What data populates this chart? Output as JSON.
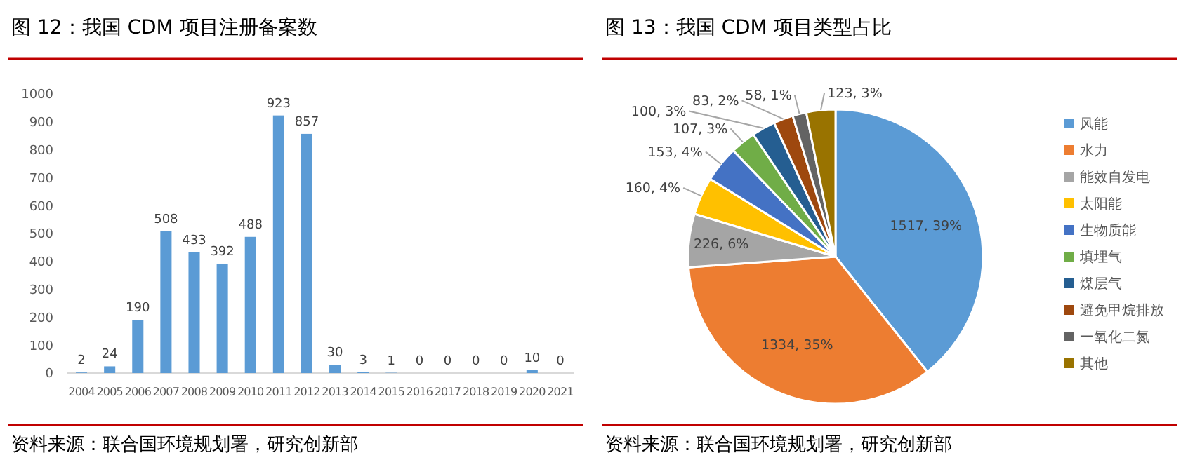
{
  "chart_data": [
    {
      "type": "bar",
      "title": "图 12：我国 CDM 项目注册备案数",
      "categories": [
        "2004",
        "2005",
        "2006",
        "2007",
        "2008",
        "2009",
        "2010",
        "2011",
        "2012",
        "2013",
        "2014",
        "2015",
        "2016",
        "2017",
        "2018",
        "2019",
        "2020",
        "2021"
      ],
      "values": [
        2,
        24,
        190,
        508,
        433,
        392,
        488,
        923,
        857,
        30,
        3,
        1,
        0,
        0,
        0,
        0,
        10,
        0
      ],
      "color": "#5b9bd5",
      "ylim": [
        0,
        1000
      ],
      "yticks": [
        0,
        100,
        200,
        300,
        400,
        500,
        600,
        700,
        800,
        900,
        1000
      ],
      "grid": false,
      "data_labels": true,
      "annotations": [
        "资料来源：联合国环境规划署，研究创新部"
      ]
    },
    {
      "type": "pie",
      "title": "图 13：我国 CDM 项目类型占比",
      "categories": [
        "风能",
        "水力",
        "能效自发电",
        "太阳能",
        "生物质能",
        "填埋气",
        "煤层气",
        "避免甲烷排放",
        "一氧化二氮",
        "其他"
      ],
      "values": [
        1517,
        1334,
        226,
        160,
        153,
        107,
        100,
        83,
        58,
        123
      ],
      "colors": [
        "#5b9bd5",
        "#ed7d31",
        "#a5a5a5",
        "#ffc000",
        "#4472c4",
        "#70ad47",
        "#255e91",
        "#9e480e",
        "#636363",
        "#997300"
      ],
      "value_labels": [
        "1517, 39%",
        "1334, 35%",
        "226, 6%",
        "160, 4%",
        "153, 4%",
        "107, 3%",
        "100, 3%",
        "83, 2%",
        "58, 1%",
        "123, 3%"
      ],
      "legend": "right",
      "annotations": [
        "资料来源：联合国环境规划署，研究创新部"
      ]
    }
  ]
}
